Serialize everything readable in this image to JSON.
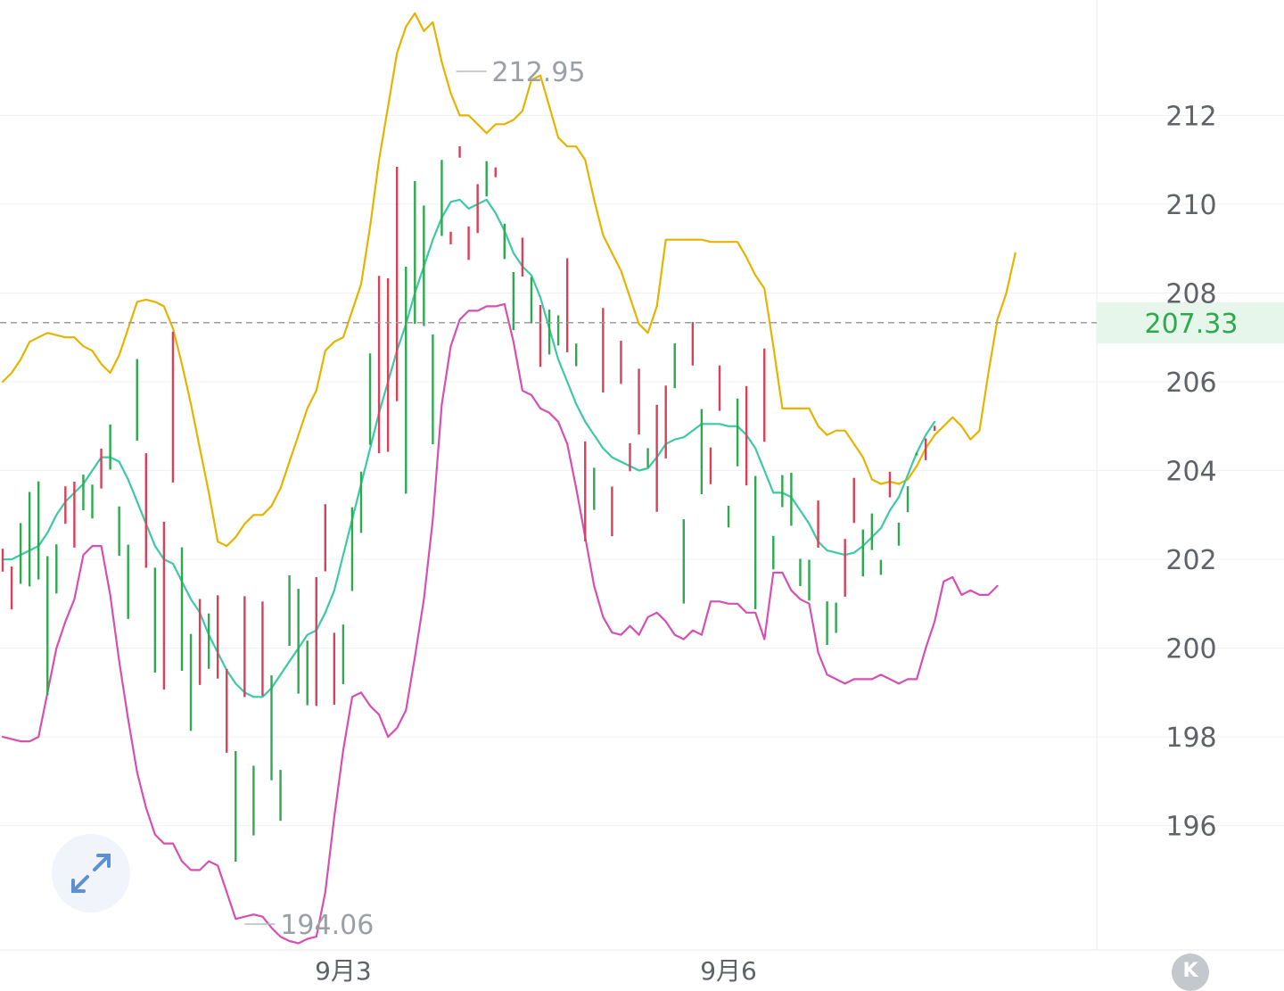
{
  "chart_data": {
    "type": "candlestick",
    "y_axis": {
      "ticks": [
        "212",
        "210",
        "208",
        "206",
        "204",
        "202",
        "200",
        "198",
        "196"
      ],
      "range": [
        193.2,
        214.6
      ],
      "position": "right"
    },
    "x_axis": {
      "ticks": [
        {
          "label": "9月3",
          "bar_index": 38
        },
        {
          "label": "9月6",
          "bar_index": 81
        }
      ]
    },
    "grid": true,
    "current_price": "207.33",
    "high_annotation": {
      "label": "212.95",
      "bar_index": 51
    },
    "low_annotation": {
      "label": "194.06",
      "bar_index": 27
    },
    "up_color": "#2ea94f",
    "down_color": "#d9405a",
    "series": [
      {
        "type": "bollinger_upper",
        "color": "#e6b400",
        "values": [
          206,
          206.2,
          206.5,
          206.9,
          207,
          207.1,
          207.05,
          207,
          207,
          206.8,
          206.7,
          206.4,
          206.2,
          206.6,
          207.2,
          207.8,
          207.85,
          207.8,
          207.7,
          207.2,
          206.4,
          205.5,
          204.5,
          203.5,
          202.4,
          202.3,
          202.5,
          202.8,
          203,
          203,
          203.2,
          203.6,
          204.2,
          204.8,
          205.4,
          205.8,
          206.7,
          206.9,
          207,
          207.6,
          208.2,
          209.5,
          211,
          212.2,
          213.4,
          214,
          214.3,
          213.9,
          214.1,
          213.2,
          212.5,
          212,
          212,
          211.8,
          211.6,
          211.8,
          211.8,
          211.9,
          212.1,
          212.8,
          212.9,
          212.2,
          211.5,
          211.3,
          211.3,
          211,
          210.1,
          209.3,
          208.9,
          208.5,
          207.9,
          207.3,
          207.1,
          207.7,
          209.2,
          209.2,
          209.2,
          209.2,
          209.2,
          209.15,
          209.15,
          209.15,
          209.15,
          208.8,
          208.4,
          208.1,
          206.8,
          205.4,
          205.4,
          205.4,
          205.4,
          205,
          204.8,
          204.9,
          204.9,
          204.6,
          204.3,
          203.8,
          203.7,
          203.75,
          203.7,
          203.8,
          204.1,
          204.5,
          204.8,
          205,
          205.2,
          205,
          204.7,
          204.9,
          206.2,
          207.4,
          208,
          208.9
        ]
      },
      {
        "type": "bollinger_middle",
        "color": "#3cc9a5",
        "values": [
          202,
          202,
          202.1,
          202.2,
          202.3,
          202.6,
          203,
          203.3,
          203.5,
          203.7,
          204,
          204.3,
          204.3,
          204.2,
          203.8,
          203.3,
          202.8,
          202.3,
          202,
          201.9,
          201.5,
          201.1,
          200.8,
          200.3,
          199.9,
          199.5,
          199.2,
          199,
          198.9,
          198.9,
          199.1,
          199.4,
          199.7,
          200,
          200.3,
          200.4,
          200.8,
          201.3,
          202.1,
          202.9,
          203.7,
          204.5,
          205.3,
          206,
          206.7,
          207.3,
          208,
          208.6,
          209.2,
          209.7,
          210.05,
          210.1,
          209.9,
          210,
          210.1,
          209.8,
          209.4,
          208.9,
          208.6,
          208.4,
          207.9,
          207.2,
          206.5,
          206,
          205.5,
          205.1,
          204.8,
          204.5,
          204.3,
          204.2,
          204.1,
          204,
          204.05,
          204.3,
          204.6,
          204.7,
          204.75,
          204.9,
          205.05,
          205.05,
          205.05,
          205,
          205,
          204.8,
          204.5,
          204,
          203.5,
          203.5,
          203.4,
          203.1,
          202.8,
          202.4,
          202.2,
          202.15,
          202.1,
          202.15,
          202.3,
          202.5,
          202.7,
          203.1,
          203.4,
          203.9,
          204.4,
          204.8,
          205.1
        ]
      },
      {
        "type": "bollinger_lower",
        "color": "#d64fb2",
        "values": [
          198,
          197.95,
          197.9,
          197.9,
          198,
          199,
          200,
          200.6,
          201.1,
          202.1,
          202.3,
          202.3,
          201.2,
          199.7,
          198.4,
          197.2,
          196.4,
          195.8,
          195.6,
          195.6,
          195.2,
          195,
          195,
          195.2,
          195.1,
          194.5,
          193.9,
          193.95,
          194,
          193.95,
          193.7,
          193.5,
          193.4,
          193.35,
          193.45,
          193.5,
          194.5,
          196.2,
          197.7,
          198.9,
          199,
          198.7,
          198.5,
          198,
          198.2,
          198.6,
          199.8,
          201.1,
          202.9,
          205.5,
          206.8,
          207.4,
          207.6,
          207.6,
          207.7,
          207.7,
          207.75,
          206.9,
          205.8,
          205.7,
          205.4,
          205.3,
          205.1,
          204.6,
          203.6,
          202.5,
          201.4,
          200.7,
          200.35,
          200.3,
          200.5,
          200.3,
          200.7,
          200.8,
          200.6,
          200.3,
          200.2,
          200.4,
          200.3,
          201.05,
          201.05,
          201,
          201,
          200.8,
          200.8,
          200.2,
          201.7,
          201.7,
          201.3,
          201.1,
          201,
          199.9,
          199.4,
          199.3,
          199.2,
          199.3,
          199.3,
          199.3,
          199.4,
          199.3,
          199.2,
          199.3,
          199.3,
          200,
          200.6,
          201.5,
          201.6,
          201.2,
          201.3,
          201.2,
          201.2,
          201.4
        ]
      }
    ]
  },
  "buttons": {
    "k_label": "K"
  }
}
